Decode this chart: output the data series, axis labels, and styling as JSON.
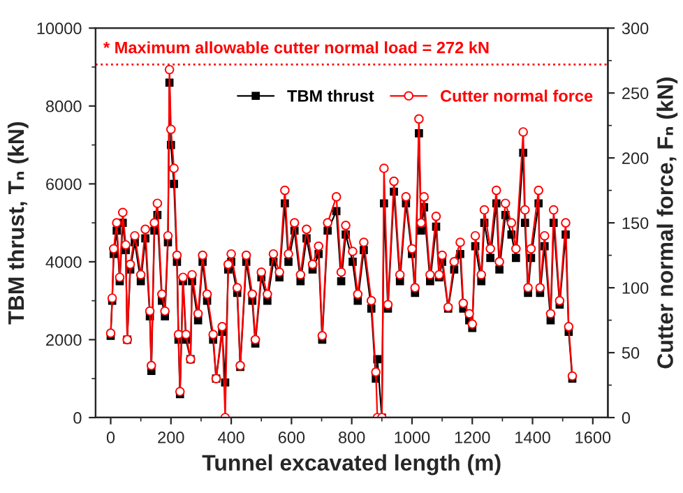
{
  "chart_data": {
    "type": "line",
    "xlabel": "Tunnel excavated length (m)",
    "ylabel": "TBM thrust, Tₙ (kN)",
    "y2label": "Cutter normal force, Fₙ (kN)",
    "x": [
      0,
      5,
      10,
      20,
      30,
      40,
      50,
      55,
      65,
      80,
      100,
      115,
      130,
      135,
      145,
      155,
      170,
      180,
      190,
      195,
      200,
      210,
      220,
      225,
      230,
      240,
      250,
      265,
      270,
      290,
      305,
      320,
      340,
      350,
      370,
      380,
      390,
      400,
      420,
      430,
      450,
      470,
      480,
      500,
      520,
      540,
      560,
      578,
      590,
      610,
      630,
      650,
      670,
      690,
      702,
      720,
      749,
      765,
      780,
      803,
      820,
      840,
      865,
      880,
      885,
      900,
      907,
      920,
      940,
      960,
      980,
      1000,
      1010,
      1023,
      1030,
      1040,
      1060,
      1080,
      1090,
      1100,
      1120,
      1140,
      1160,
      1170,
      1190,
      1200,
      1210,
      1230,
      1240,
      1260,
      1280,
      1290,
      1310,
      1330,
      1345,
      1369,
      1375,
      1385,
      1395,
      1420,
      1425,
      1440,
      1460,
      1470,
      1490,
      1510,
      1520,
      1532
    ],
    "series": [
      {
        "name": "TBM thrust",
        "color": "#000000",
        "marker": "square",
        "values": [
          2100,
          3000,
          4200,
          4800,
          3500,
          5000,
          4300,
          2000,
          3800,
          4500,
          3500,
          4600,
          2600,
          1200,
          4800,
          5200,
          3000,
          2600,
          4500,
          8600,
          7000,
          6000,
          4000,
          2000,
          600,
          3500,
          2000,
          1500,
          3500,
          2500,
          4000,
          3000,
          2000,
          1000,
          2200,
          900,
          3800,
          4000,
          3200,
          1300,
          4000,
          3000,
          1900,
          3600,
          3000,
          4000,
          3600,
          5500,
          4000,
          4800,
          3500,
          4600,
          3800,
          4200,
          2000,
          4800,
          5300,
          3500,
          4700,
          4000,
          3000,
          4300,
          2800,
          1000,
          1500,
          0,
          5500,
          2800,
          5800,
          3500,
          5500,
          4200,
          3200,
          7300,
          4800,
          5400,
          3500,
          4900,
          3600,
          4000,
          2800,
          3800,
          4200,
          2800,
          2500,
          2300,
          4400,
          3500,
          5000,
          4100,
          5500,
          3800,
          5200,
          4700,
          4100,
          6800,
          5000,
          3200,
          4100,
          5500,
          3200,
          4400,
          2500,
          5000,
          2900,
          4700,
          2200,
          1000
        ]
      },
      {
        "name": "Cutter normal force",
        "color": "#ff0000",
        "marker": "circle",
        "axis": "y2",
        "values": [
          65,
          92,
          130,
          150,
          108,
          158,
          133,
          60,
          118,
          140,
          110,
          145,
          82,
          40,
          150,
          165,
          95,
          82,
          140,
          268,
          222,
          192,
          125,
          64,
          20,
          108,
          64,
          45,
          110,
          80,
          125,
          95,
          64,
          30,
          70,
          0,
          118,
          126,
          100,
          40,
          125,
          95,
          60,
          112,
          95,
          126,
          112,
          175,
          126,
          150,
          110,
          145,
          118,
          132,
          63,
          150,
          170,
          112,
          148,
          128,
          95,
          135,
          90,
          35,
          0,
          0,
          192,
          87,
          182,
          110,
          170,
          130,
          100,
          230,
          150,
          170,
          110,
          155,
          110,
          125,
          85,
          120,
          135,
          88,
          80,
          72,
          140,
          110,
          160,
          130,
          175,
          120,
          165,
          150,
          130,
          220,
          160,
          100,
          130,
          175,
          100,
          140,
          80,
          160,
          90,
          150,
          70,
          32
        ]
      }
    ],
    "xlim": [
      -50,
      1650
    ],
    "xticks": [
      0,
      200,
      400,
      600,
      800,
      1000,
      1200,
      1400,
      1600
    ],
    "ylim": [
      0,
      10000
    ],
    "yticks": [
      0,
      2000,
      4000,
      6000,
      8000,
      10000
    ],
    "y2lim": [
      0,
      300
    ],
    "y2ticks": [
      0,
      50,
      100,
      150,
      200,
      250,
      300
    ],
    "ref_lines": [
      {
        "axis": "y2",
        "value": 272,
        "label": "* Maximum allowable cutter normal load = 272 kN",
        "color": "#ff0000",
        "line_style": "dotted"
      }
    ],
    "legend": "top right",
    "grid": false
  }
}
